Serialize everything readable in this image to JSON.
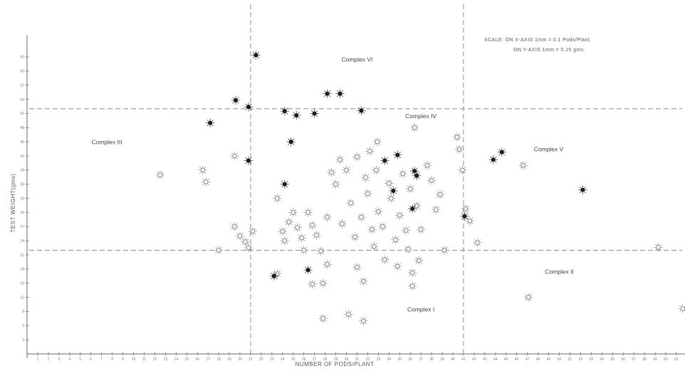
{
  "chart_data": {
    "type": "scatter",
    "title": "",
    "xlabel": "NUMBER OF PODS/PLANT",
    "ylabel": "TEST WEIGHT(gms)",
    "xlim": [
      0,
      64
    ],
    "ylim": [
      0,
      67
    ],
    "x_ticks": [
      1,
      2,
      3,
      4,
      5,
      6,
      7,
      8,
      9,
      10,
      11,
      12,
      13,
      14,
      15,
      16,
      17,
      18,
      19,
      20,
      21,
      22,
      23,
      24,
      25,
      26,
      27,
      28,
      29,
      30,
      31,
      32,
      33,
      34,
      35,
      36,
      37,
      38,
      39,
      40,
      41,
      42,
      43,
      44,
      45,
      46,
      47,
      48,
      49,
      50,
      51,
      52,
      53,
      54,
      55,
      56,
      57,
      58,
      59,
      60,
      61,
      62,
      63
    ],
    "y_ticks": [
      3,
      6,
      9,
      12,
      15,
      18,
      21,
      24,
      27,
      30,
      33,
      36,
      39,
      42,
      45,
      48,
      51,
      54,
      57,
      60,
      63
    ],
    "scale_note": {
      "line1": "SCALE:  ON X-AXIS 1mm = 0.1 Pods/Plant.",
      "line2": "ON Y-AXIS 1mm = 0.15 gms."
    },
    "dividers": {
      "x": [
        21,
        41
      ],
      "y": [
        22,
        52
      ]
    },
    "regions": [
      {
        "label": "Complex VI",
        "x": 31,
        "y": 62
      },
      {
        "label": "Complex IV",
        "x": 37,
        "y": 50
      },
      {
        "label": "Complex III",
        "x": 7.5,
        "y": 44.5
      },
      {
        "label": "Complex V",
        "x": 49,
        "y": 43
      },
      {
        "label": "Complex II",
        "x": 50,
        "y": 17
      },
      {
        "label": "Complex I",
        "x": 37,
        "y": 9
      }
    ],
    "series": [
      {
        "marker": "open",
        "points": [
          [
            12.5,
            38
          ],
          [
            16.5,
            39
          ],
          [
            16.8,
            36.5
          ],
          [
            18,
            22
          ],
          [
            19.5,
            27
          ],
          [
            19.5,
            42
          ],
          [
            20,
            25
          ],
          [
            20.5,
            23.8
          ],
          [
            20.8,
            22.5
          ],
          [
            21.2,
            26
          ],
          [
            23.5,
            33
          ],
          [
            23.5,
            17
          ],
          [
            24,
            26
          ],
          [
            24.2,
            24
          ],
          [
            24.6,
            28
          ],
          [
            25,
            30
          ],
          [
            25.4,
            26.8
          ],
          [
            25.8,
            24.6
          ],
          [
            26,
            22
          ],
          [
            26.4,
            30
          ],
          [
            26.8,
            27.3
          ],
          [
            27.2,
            25.2
          ],
          [
            27.6,
            21.8
          ],
          [
            27.8,
            15
          ],
          [
            28.2,
            19
          ],
          [
            28.2,
            29
          ],
          [
            28.6,
            38.5
          ],
          [
            29,
            36
          ],
          [
            29.4,
            41.2
          ],
          [
            29.6,
            27.6
          ],
          [
            30,
            39
          ],
          [
            30.2,
            8.4
          ],
          [
            30.4,
            32
          ],
          [
            30.8,
            24.8
          ],
          [
            31,
            41.8
          ],
          [
            31,
            18.4
          ],
          [
            31.4,
            29
          ],
          [
            31.6,
            15.4
          ],
          [
            31.8,
            37.4
          ],
          [
            32,
            34
          ],
          [
            32.2,
            43
          ],
          [
            32.4,
            26.4
          ],
          [
            32.6,
            22.8
          ],
          [
            32.8,
            39
          ],
          [
            32.9,
            45
          ],
          [
            33,
            30.2
          ],
          [
            33.4,
            27
          ],
          [
            33.6,
            20
          ],
          [
            34,
            36.2
          ],
          [
            34.2,
            33
          ],
          [
            34.6,
            24.2
          ],
          [
            34.8,
            18.6
          ],
          [
            35,
            29.4
          ],
          [
            35.3,
            38.2
          ],
          [
            35.6,
            26.2
          ],
          [
            35.8,
            22.2
          ],
          [
            36,
            35
          ],
          [
            36.2,
            14.4
          ],
          [
            36.4,
            48
          ],
          [
            36.6,
            31.4
          ],
          [
            36.8,
            19.8
          ],
          [
            37,
            26.4
          ],
          [
            37.6,
            40
          ],
          [
            38,
            36.8
          ],
          [
            38.4,
            30.6
          ],
          [
            38.8,
            33.8
          ],
          [
            39.2,
            22
          ],
          [
            40.4,
            46
          ],
          [
            40.6,
            43.4
          ],
          [
            40.9,
            39
          ],
          [
            41.2,
            30.8
          ],
          [
            41.6,
            28.2
          ],
          [
            42.3,
            23.6
          ],
          [
            46.6,
            40
          ],
          [
            47.1,
            12
          ],
          [
            59.3,
            22.6
          ],
          [
            61.6,
            9.6
          ],
          [
            36.2,
            17.2
          ],
          [
            26.8,
            14.8
          ],
          [
            27.8,
            7.5
          ],
          [
            31.6,
            7
          ]
        ]
      },
      {
        "marker": "filled",
        "points": [
          [
            21.5,
            63.4
          ],
          [
            19.6,
            53.8
          ],
          [
            20.8,
            52.4
          ],
          [
            17.2,
            49
          ],
          [
            24.2,
            51.5
          ],
          [
            25.3,
            50.6
          ],
          [
            27,
            51
          ],
          [
            28.2,
            55.2
          ],
          [
            29.4,
            55.2
          ],
          [
            31.4,
            51.6
          ],
          [
            24.8,
            45
          ],
          [
            20.8,
            41
          ],
          [
            26.4,
            17.8
          ],
          [
            23.2,
            16.5
          ],
          [
            24.2,
            36
          ],
          [
            33.6,
            41
          ],
          [
            34.8,
            42.2
          ],
          [
            36.4,
            38.8
          ],
          [
            36.6,
            37.8
          ],
          [
            34.4,
            34.6
          ],
          [
            36.2,
            30.8
          ],
          [
            41.1,
            29.2
          ],
          [
            43.8,
            41.2
          ],
          [
            44.6,
            42.8
          ],
          [
            52.2,
            34.8
          ]
        ]
      }
    ]
  }
}
